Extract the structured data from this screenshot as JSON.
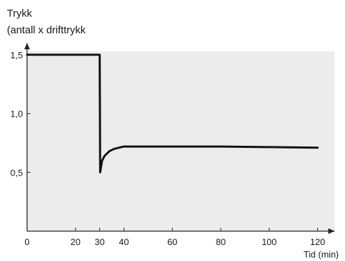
{
  "chart_data": {
    "type": "line",
    "ylabel_line1": "Trykk",
    "ylabel_line2": "(antall x drifttrykk",
    "xlabel": "Tid (min)",
    "x_ticks": [
      "0",
      "20",
      "30",
      "40",
      "60",
      "80",
      "100",
      "120"
    ],
    "x_tick_values": [
      0,
      20,
      30,
      40,
      60,
      80,
      100,
      120
    ],
    "y_ticks": [
      "0,5",
      "1,0",
      "1,5"
    ],
    "y_tick_values": [
      0.5,
      1.0,
      1.5
    ],
    "xlim": [
      0,
      127
    ],
    "ylim": [
      0,
      1.6
    ],
    "grid": false,
    "series": [
      {
        "x": [
          0,
          30,
          30.2,
          31,
          32,
          34,
          36,
          38,
          40,
          45,
          50,
          60,
          80,
          100,
          120
        ],
        "y": [
          1.5,
          1.5,
          0.5,
          0.6,
          0.64,
          0.68,
          0.7,
          0.71,
          0.72,
          0.72,
          0.72,
          0.72,
          0.72,
          0.715,
          0.71
        ],
        "color": "#111111"
      }
    ],
    "plot_background": "#ececec"
  }
}
